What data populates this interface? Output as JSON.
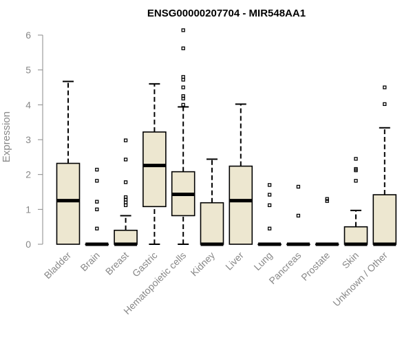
{
  "chart_data": {
    "type": "boxplot",
    "title": "ENSG00000207704 - MIR548AA1",
    "xlabel": "",
    "ylabel": "Expression",
    "ylim": [
      0,
      6.2
    ],
    "yticks": [
      0,
      1,
      2,
      3,
      4,
      5,
      6
    ],
    "grid": false,
    "colors": {
      "box_fill": "#ede7d0",
      "stroke": "#000000",
      "axis": "#888888",
      "label": "#888888",
      "title": "#000000"
    },
    "categories": [
      "Bladder",
      "Brain",
      "Breast",
      "Gastric",
      "Hematopoietic cells",
      "Kidney",
      "Liver",
      "Lung",
      "Pancreas",
      "Prostate",
      "Skin",
      "Unknown / Other"
    ],
    "boxes": [
      {
        "name": "Bladder",
        "whisker_low": 0,
        "q1": 0,
        "median": 1.25,
        "q3": 2.32,
        "whisker_high": 4.67,
        "outliers": []
      },
      {
        "name": "Brain",
        "whisker_low": 0,
        "q1": 0,
        "median": 0,
        "q3": 0,
        "whisker_high": 0,
        "outliers": [
          0.45,
          1.0,
          1.22,
          1.82,
          2.14
        ]
      },
      {
        "name": "Breast",
        "whisker_low": 0,
        "q1": 0,
        "median": 0,
        "q3": 0.4,
        "whisker_high": 0.82,
        "outliers": [
          1.12,
          1.2,
          1.28,
          1.35,
          1.78,
          2.43,
          2.98
        ]
      },
      {
        "name": "Gastric",
        "whisker_low": 0,
        "q1": 1.08,
        "median": 2.26,
        "q3": 3.22,
        "whisker_high": 4.6,
        "outliers": []
      },
      {
        "name": "Hematopoietic cells",
        "whisker_low": 0,
        "q1": 0.82,
        "median": 1.43,
        "q3": 2.08,
        "whisker_high": 3.94,
        "outliers": [
          4.0,
          4.18,
          4.25,
          4.5,
          4.72,
          4.8,
          5.62,
          6.14
        ]
      },
      {
        "name": "Kidney",
        "whisker_low": 0,
        "q1": 0,
        "median": 0,
        "q3": 1.19,
        "whisker_high": 2.44,
        "outliers": []
      },
      {
        "name": "Liver",
        "whisker_low": 0,
        "q1": 0,
        "median": 1.25,
        "q3": 2.24,
        "whisker_high": 4.02,
        "outliers": []
      },
      {
        "name": "Lung",
        "whisker_low": 0,
        "q1": 0,
        "median": 0,
        "q3": 0,
        "whisker_high": 0,
        "outliers": [
          0.45,
          1.12,
          1.42,
          1.7
        ]
      },
      {
        "name": "Pancreas",
        "whisker_low": 0,
        "q1": 0,
        "median": 0,
        "q3": 0,
        "whisker_high": 0,
        "outliers": [
          0.82,
          1.65
        ]
      },
      {
        "name": "Prostate",
        "whisker_low": 0,
        "q1": 0,
        "median": 0,
        "q3": 0,
        "whisker_high": 0,
        "outliers": [
          1.24,
          1.3
        ]
      },
      {
        "name": "Skin",
        "whisker_low": 0,
        "q1": 0,
        "median": 0,
        "q3": 0.5,
        "whisker_high": 0.97,
        "outliers": [
          1.82,
          2.12,
          2.16,
          2.45
        ]
      },
      {
        "name": "Unknown / Other",
        "whisker_low": 0,
        "q1": 0,
        "median": 0,
        "q3": 1.42,
        "whisker_high": 3.34,
        "outliers": [
          4.02,
          4.5
        ]
      }
    ]
  }
}
